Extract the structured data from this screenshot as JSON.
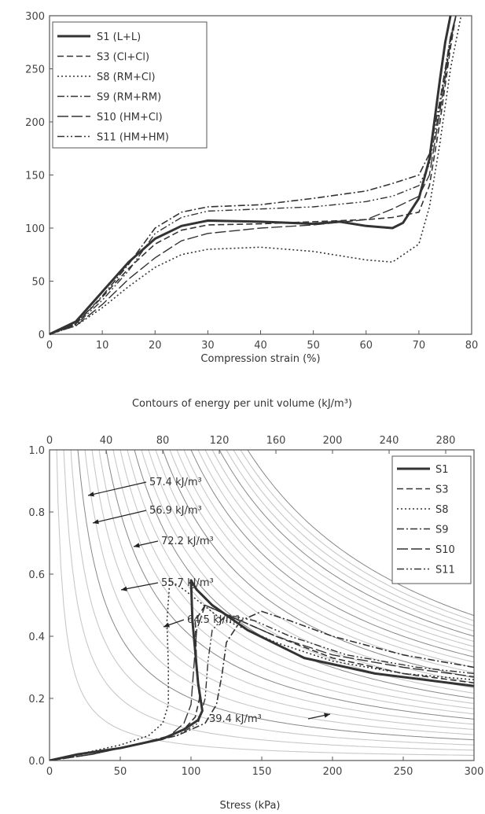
{
  "chart_data": [
    {
      "type": "line",
      "xlabel": "Compression strain (%)",
      "ylabel": "",
      "xlim": [
        0,
        80
      ],
      "ylim": [
        0,
        300
      ],
      "x_ticks": [
        "0",
        "10",
        "20",
        "30",
        "40",
        "50",
        "60",
        "70",
        "80"
      ],
      "y_ticks": [
        "0",
        "50",
        "100",
        "150",
        "200",
        "250",
        "300"
      ],
      "legend_position": "top-left",
      "series": [
        {
          "name": "S1 (L+L)",
          "style": "solid-thick",
          "x": [
            0,
            5,
            10,
            15,
            20,
            25,
            30,
            40,
            50,
            55,
            60,
            65,
            67,
            70,
            72,
            74,
            75,
            76
          ],
          "y": [
            0,
            12,
            40,
            68,
            90,
            102,
            107,
            106,
            104,
            106,
            102,
            100,
            105,
            128,
            165,
            240,
            275,
            300
          ]
        },
        {
          "name": "S3 (Cl+Cl)",
          "style": "dash",
          "x": [
            0,
            5,
            10,
            15,
            20,
            25,
            30,
            40,
            50,
            60,
            65,
            70,
            72,
            74,
            76,
            77
          ],
          "y": [
            0,
            10,
            35,
            62,
            85,
            98,
            103,
            104,
            106,
            108,
            110,
            115,
            140,
            200,
            270,
            300
          ]
        },
        {
          "name": "S8 (RM+Cl)",
          "style": "dot",
          "x": [
            0,
            5,
            10,
            15,
            20,
            25,
            30,
            40,
            50,
            60,
            65,
            70,
            72,
            74,
            76,
            78
          ],
          "y": [
            0,
            8,
            25,
            45,
            63,
            75,
            80,
            82,
            78,
            70,
            68,
            85,
            120,
            180,
            250,
            300
          ]
        },
        {
          "name": "S9 (RM+RM)",
          "style": "dashdot",
          "x": [
            0,
            5,
            10,
            15,
            20,
            25,
            30,
            40,
            50,
            60,
            65,
            70,
            72,
            74,
            76,
            77
          ],
          "y": [
            0,
            10,
            36,
            66,
            100,
            115,
            120,
            122,
            128,
            135,
            142,
            150,
            170,
            220,
            280,
            300
          ]
        },
        {
          "name": "S10 (HM+Cl)",
          "style": "longdash",
          "x": [
            0,
            5,
            10,
            15,
            20,
            25,
            30,
            40,
            50,
            60,
            65,
            70,
            72,
            74,
            76,
            77
          ],
          "y": [
            0,
            8,
            28,
            52,
            72,
            88,
            95,
            100,
            103,
            108,
            118,
            130,
            150,
            210,
            275,
            300
          ]
        },
        {
          "name": "S11 (HM+HM)",
          "style": "dashdotdot",
          "x": [
            0,
            5,
            10,
            15,
            20,
            25,
            30,
            40,
            50,
            60,
            65,
            70,
            72,
            74,
            76,
            77
          ],
          "y": [
            0,
            9,
            32,
            60,
            95,
            110,
            116,
            118,
            120,
            125,
            130,
            140,
            160,
            215,
            280,
            300
          ]
        }
      ]
    },
    {
      "type": "line",
      "title": "Contours of energy per unit volume (kJ/m³)",
      "xlabel": "Stress (kPa)",
      "ylabel": "",
      "xlim": [
        0,
        300
      ],
      "ylim": [
        0,
        1.0
      ],
      "top_xlim": [
        0,
        300
      ],
      "x_ticks": [
        "0",
        "50",
        "100",
        "150",
        "200",
        "250",
        "300"
      ],
      "top_x_ticks": [
        "0",
        "40",
        "80",
        "120",
        "160",
        "200",
        "240",
        "280"
      ],
      "y_ticks": [
        "0.0",
        "0.2",
        "0.4",
        "0.6",
        "0.8",
        "1.0"
      ],
      "legend_position": "top-right",
      "series": [
        {
          "name": "S1",
          "style": "solid-thick",
          "x": [
            0,
            20,
            50,
            80,
            95,
            105,
            108,
            105,
            101,
            100,
            104,
            115,
            140,
            180,
            230,
            300
          ],
          "y": [
            0,
            0.02,
            0.04,
            0.07,
            0.1,
            0.13,
            0.16,
            0.25,
            0.45,
            0.58,
            0.55,
            0.5,
            0.42,
            0.33,
            0.28,
            0.24
          ]
        },
        {
          "name": "S3",
          "style": "dash",
          "x": [
            0,
            20,
            50,
            80,
            95,
            103,
            106,
            104,
            103,
            110,
            130,
            160,
            200,
            250,
            300
          ],
          "y": [
            0,
            0.02,
            0.04,
            0.07,
            0.1,
            0.14,
            0.2,
            0.3,
            0.45,
            0.5,
            0.46,
            0.4,
            0.33,
            0.28,
            0.25
          ]
        },
        {
          "name": "S8",
          "style": "dot",
          "x": [
            0,
            20,
            50,
            70,
            80,
            84,
            84,
            83,
            85,
            95,
            120,
            160,
            200,
            250,
            300
          ],
          "y": [
            0,
            0.02,
            0.05,
            0.08,
            0.12,
            0.18,
            0.3,
            0.45,
            0.58,
            0.55,
            0.46,
            0.38,
            0.32,
            0.28,
            0.26
          ]
        },
        {
          "name": "S9",
          "style": "dashdot",
          "x": [
            0,
            30,
            60,
            90,
            110,
            118,
            122,
            125,
            135,
            150,
            170,
            200,
            250,
            300
          ],
          "y": [
            0,
            0.02,
            0.05,
            0.08,
            0.12,
            0.18,
            0.28,
            0.38,
            0.45,
            0.48,
            0.45,
            0.4,
            0.34,
            0.3
          ]
        },
        {
          "name": "S10",
          "style": "longdash",
          "x": [
            0,
            30,
            60,
            85,
            95,
            100,
            102,
            104,
            110,
            130,
            160,
            200,
            250,
            300
          ],
          "y": [
            0,
            0.02,
            0.05,
            0.08,
            0.12,
            0.18,
            0.3,
            0.42,
            0.5,
            0.46,
            0.4,
            0.34,
            0.3,
            0.27
          ]
        },
        {
          "name": "S11",
          "style": "dashdotdot",
          "x": [
            0,
            30,
            60,
            90,
            105,
            110,
            112,
            115,
            125,
            145,
            170,
            210,
            260,
            300
          ],
          "y": [
            0,
            0.02,
            0.05,
            0.08,
            0.12,
            0.2,
            0.32,
            0.42,
            0.47,
            0.45,
            0.4,
            0.34,
            0.3,
            0.28
          ]
        }
      ],
      "annotations": [
        "57.4 kJ/m³",
        "56.9 kJ/m³",
        "72.2 kJ/m³",
        "55.7 kJ/m³",
        "64.5 kJ/m³",
        "39.4 kJ/m³"
      ]
    }
  ]
}
